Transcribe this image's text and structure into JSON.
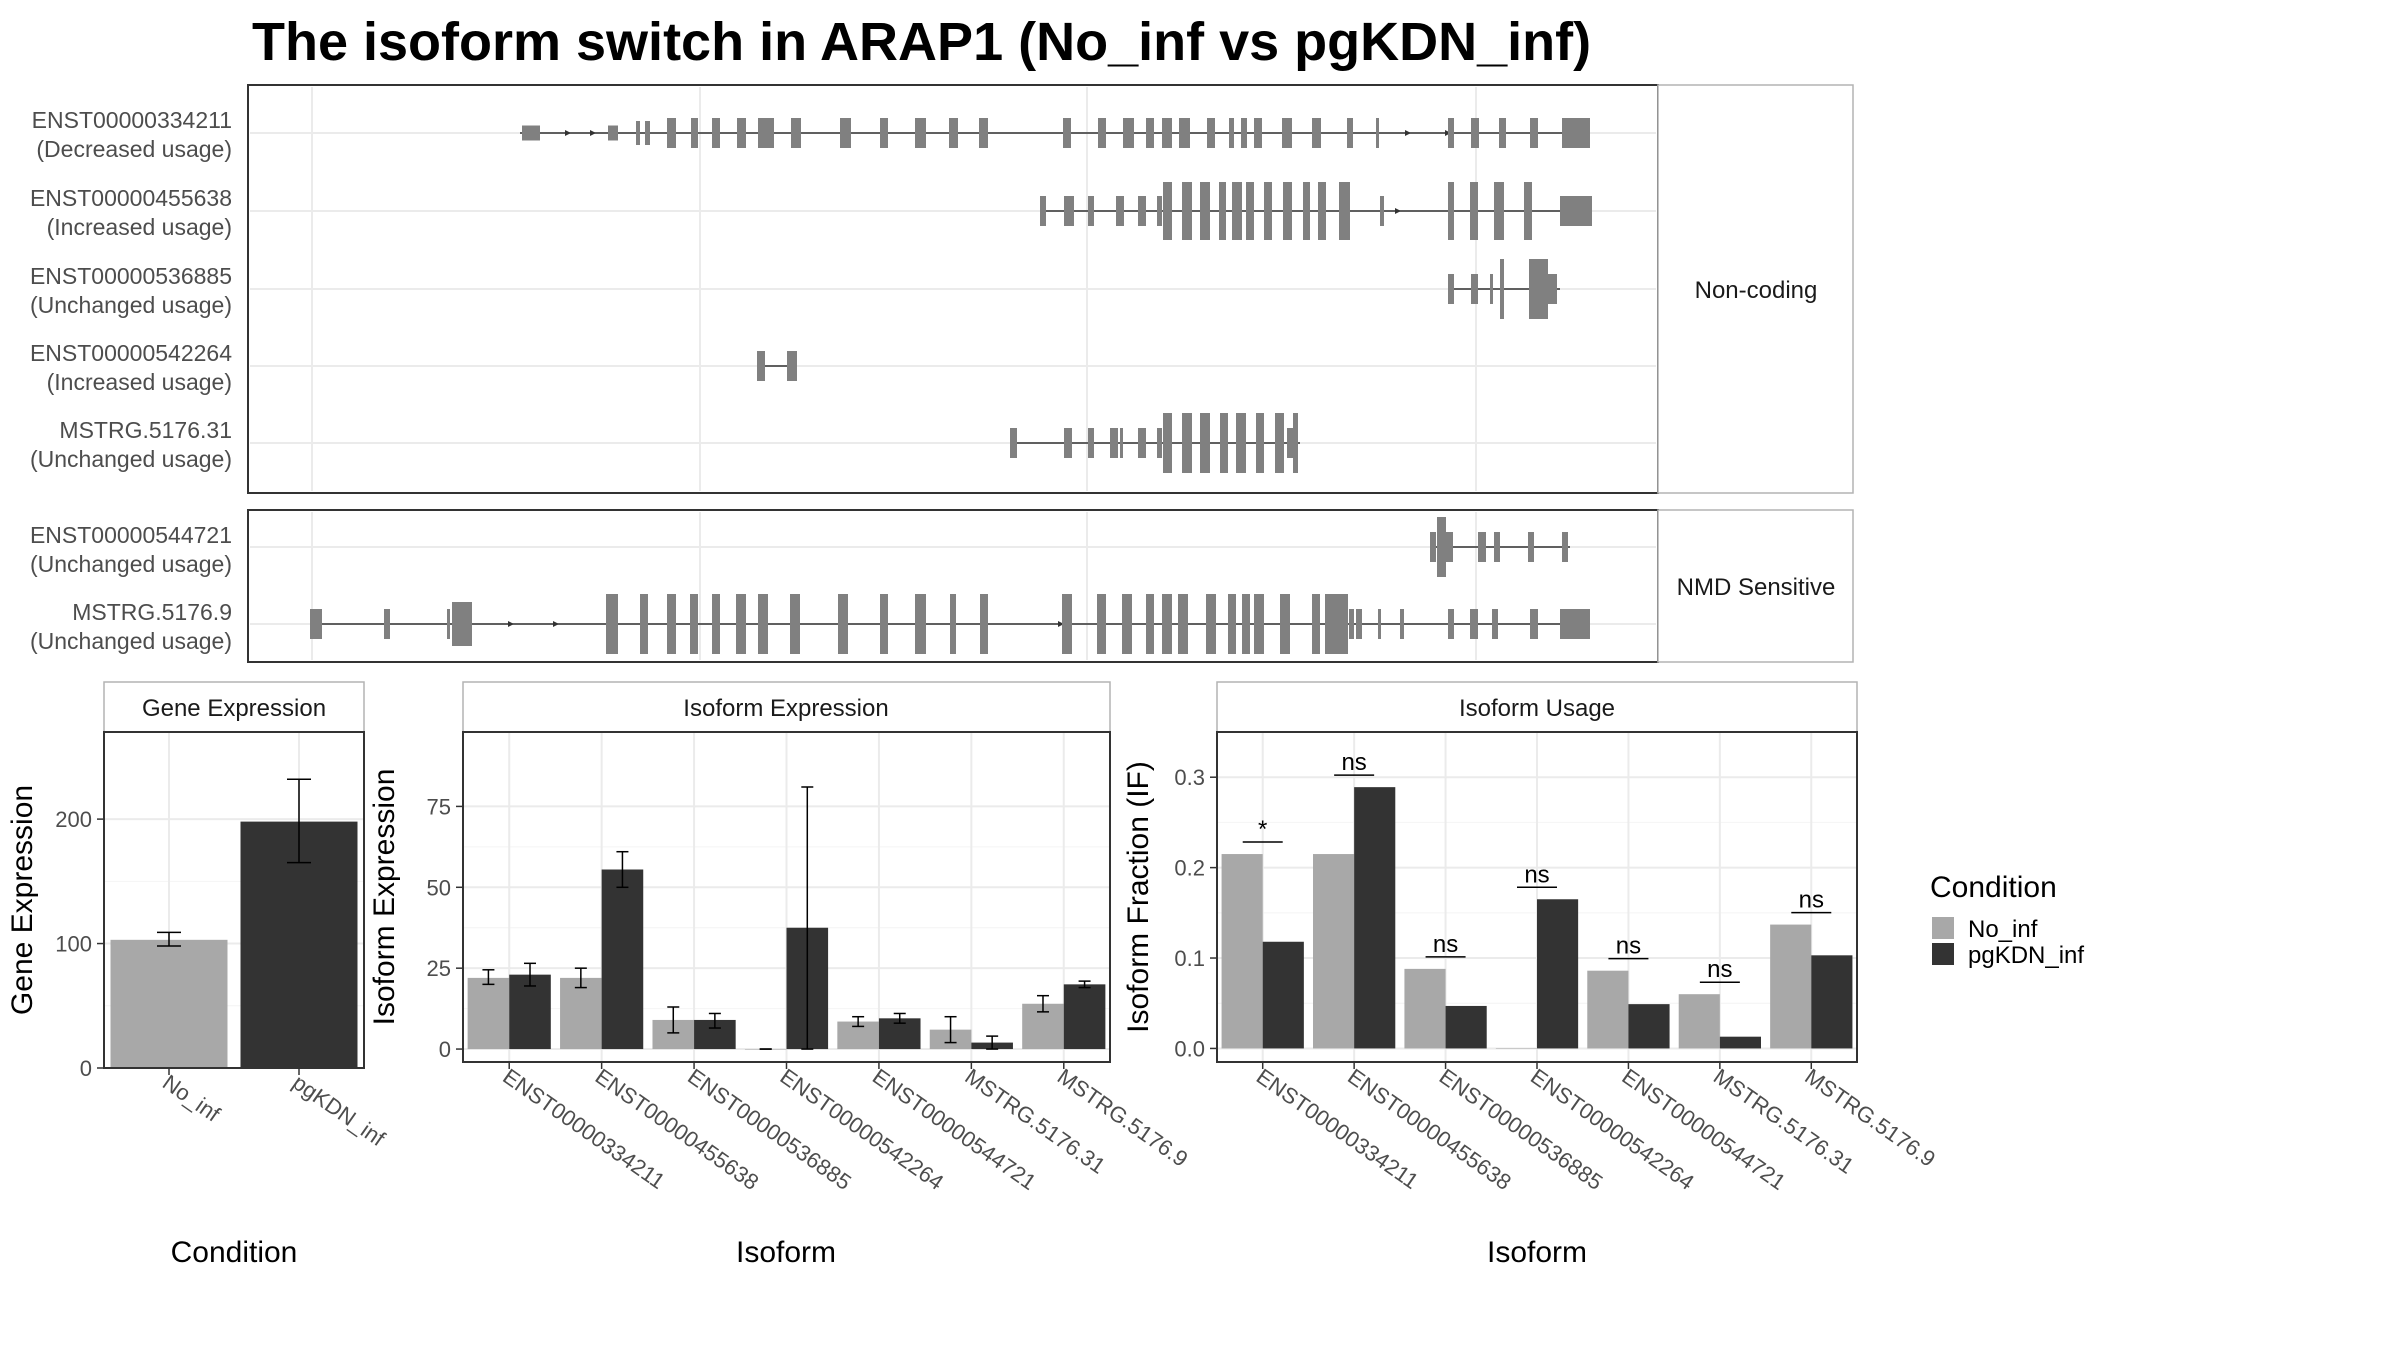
{
  "title": "The isoform switch in ARAP1 (No_inf vs pgKDN_inf)",
  "colors": {
    "exon": "#808080",
    "no_inf": "#a8a8a8",
    "pgkdn_inf": "#333333"
  },
  "structure": {
    "groups": [
      {
        "label": "Non-coding",
        "isoforms": [
          {
            "id": "ENST00000334211",
            "usage": "(Decreased usage)"
          },
          {
            "id": "ENST00000455638",
            "usage": "(Increased usage)"
          },
          {
            "id": "ENST00000536885",
            "usage": "(Unchanged usage)"
          },
          {
            "id": "ENST00000542264",
            "usage": "(Increased usage)"
          },
          {
            "id": "MSTRG.5176.31",
            "usage": "(Unchanged usage)"
          }
        ]
      },
      {
        "label": "NMD Sensitive",
        "isoforms": [
          {
            "id": "ENST00000544721",
            "usage": "(Unchanged usage)"
          },
          {
            "id": "MSTRG.5176.9",
            "usage": "(Unchanged usage)"
          }
        ]
      }
    ]
  },
  "chart_data": [
    {
      "type": "bar",
      "title": "Gene Expression",
      "xlabel": "Condition",
      "ylabel": "Gene Expression",
      "categories": [
        "No_inf",
        "pgKDN_inf"
      ],
      "values": [
        103,
        198
      ],
      "errors": [
        [
          98,
          109
        ],
        [
          165,
          232
        ]
      ],
      "ylim": [
        0,
        270
      ],
      "yticks": [
        0,
        100,
        200
      ]
    },
    {
      "type": "bar",
      "title": "Isoform Expression",
      "xlabel": "Isoform",
      "ylabel": "Isoform Expression",
      "categories": [
        "ENST00000334211",
        "ENST00000455638",
        "ENST00000536885",
        "ENST00000542264",
        "ENST00000544721",
        "MSTRG.5176.31",
        "MSTRG.5176.9"
      ],
      "series": [
        {
          "name": "No_inf",
          "values": [
            22,
            22,
            9,
            0,
            8.5,
            6,
            14
          ],
          "errors": [
            [
              20,
              24.5
            ],
            [
              19,
              25
            ],
            [
              5,
              13
            ],
            [
              0,
              0
            ],
            [
              7,
              10
            ],
            [
              2,
              10
            ],
            [
              11.5,
              16.5
            ]
          ]
        },
        {
          "name": "pgKDN_inf",
          "values": [
            23,
            55.5,
            9,
            37.5,
            9.5,
            2,
            20
          ],
          "errors": [
            [
              19.5,
              26.5
            ],
            [
              50,
              61
            ],
            [
              6.5,
              11
            ],
            [
              0,
              81
            ],
            [
              8,
              11
            ],
            [
              0,
              4
            ],
            [
              19,
              21
            ]
          ]
        }
      ],
      "ylim": [
        -4,
        98
      ],
      "yticks": [
        0,
        25,
        50,
        75
      ]
    },
    {
      "type": "bar",
      "title": "Isoform Usage",
      "xlabel": "Isoform",
      "ylabel": "Isoform Fraction (IF)",
      "categories": [
        "ENST00000334211",
        "ENST00000455638",
        "ENST00000536885",
        "ENST00000542264",
        "ENST00000544721",
        "MSTRG.5176.31",
        "MSTRG.5176.9"
      ],
      "series": [
        {
          "name": "No_inf",
          "values": [
            0.215,
            0.215,
            0.088,
            0,
            0.086,
            0.06,
            0.137
          ]
        },
        {
          "name": "pgKDN_inf",
          "values": [
            0.118,
            0.289,
            0.047,
            0.165,
            0.049,
            0.013,
            0.103
          ]
        }
      ],
      "significance": [
        "*",
        "ns",
        "ns",
        "ns",
        "ns",
        "ns",
        "ns"
      ],
      "ylim": [
        -0.015,
        0.35
      ],
      "yticks": [
        0.0,
        0.1,
        0.2,
        0.3
      ],
      "ytick_labels": [
        "0.0",
        "0.1",
        "0.2",
        "0.3"
      ]
    }
  ],
  "legend": {
    "title": "Condition",
    "items": [
      "No_inf",
      "pgKDN_inf"
    ]
  }
}
